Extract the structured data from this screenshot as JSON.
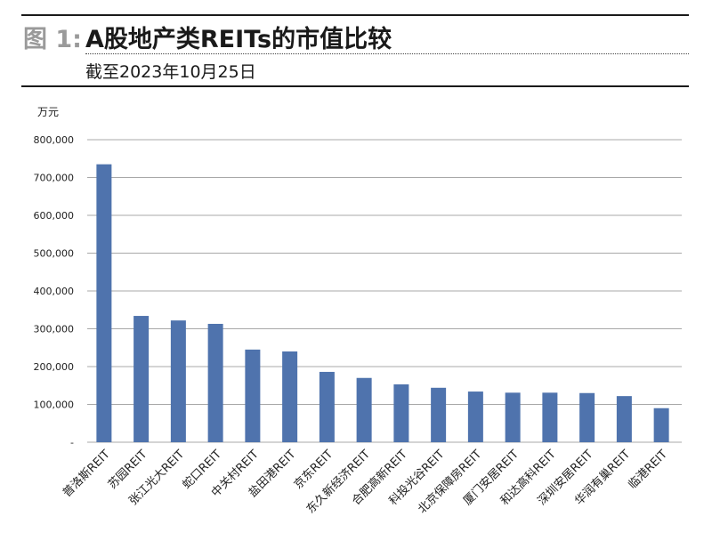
{
  "header": {
    "figure_label": "图 1:",
    "title": "A股地产类REITs的市值比较",
    "subtitle": "截至2023年10月25日"
  },
  "chart_data": {
    "type": "bar",
    "unit": "万元",
    "ylim": [
      0,
      800000
    ],
    "y_ticks": [
      0,
      100000,
      200000,
      300000,
      400000,
      500000,
      600000,
      700000,
      800000
    ],
    "y_tick_labels": [
      "-",
      "100,000",
      "200,000",
      "300,000",
      "400,000",
      "500,000",
      "600,000",
      "700,000",
      "800,000"
    ],
    "grid": true,
    "bar_color": "#4f73ad",
    "categories": [
      "普洛斯REIT",
      "苏园REIT",
      "张江光大REIT",
      "蛇口REIT",
      "中关村REIT",
      "盐田港REIT",
      "京东REIT",
      "东久新经济REIT",
      "合肥高新REIT",
      "科投光谷REIT",
      "北京保障房REIT",
      "厦门安居REIT",
      "和达高科REIT",
      "深圳安居REIT",
      "华润有巢REIT",
      "临港REIT"
    ],
    "values": [
      735000,
      334000,
      322000,
      313000,
      245000,
      240000,
      186000,
      170000,
      153000,
      144000,
      134000,
      131000,
      131000,
      130000,
      122000,
      90000
    ]
  }
}
